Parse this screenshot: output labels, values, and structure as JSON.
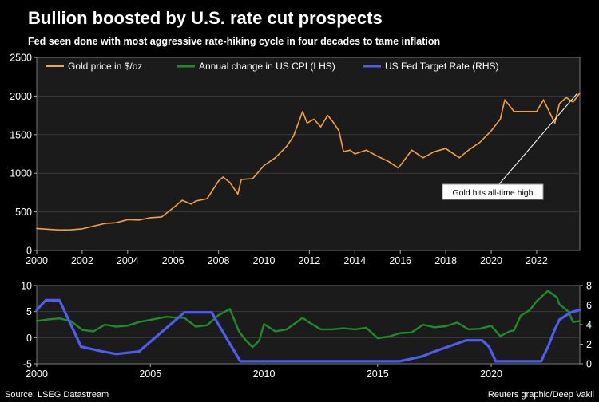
{
  "title": "Bullion boosted by U.S. rate cut prospects",
  "subtitle": "Fed seen done with most aggressive rate-hiking cycle in four decades to tame inflation",
  "source": "Source: LSEG Datastream",
  "credit": "Reuters graphic/Deep Vakil",
  "colors": {
    "background": "#000000",
    "plot_background": "#1b1b1b",
    "gold": "#f5a23c",
    "cpi": "#1e8c2a",
    "fed": "#4f5cf0",
    "text": "#ffffff",
    "grid": "#3a3a3a"
  },
  "chart_data": [
    {
      "type": "line",
      "name": "top",
      "legend": [
        "Gold price in $/oz",
        "Annual change in US CPI (LHS)",
        "US Fed Target Rate (RHS)"
      ],
      "xlim": [
        2000,
        2023.9
      ],
      "xticks": [
        "2000",
        "2002",
        "2004",
        "2006",
        "2008",
        "2010",
        "2012",
        "2014",
        "2016",
        "2018",
        "2020",
        "2022"
      ],
      "ylim": [
        0,
        2500
      ],
      "yticks": [
        "0",
        "500",
        "1000",
        "1500",
        "2000",
        "2500"
      ],
      "annotation": {
        "text": "Gold hits all-time high",
        "x": 2023.8,
        "y": 2040
      },
      "series": [
        {
          "name": "Gold price in $/oz",
          "x": [
            2000,
            2000.5,
            2001,
            2001.5,
            2002,
            2002.5,
            2003,
            2003.5,
            2004,
            2004.5,
            2005,
            2005.5,
            2006,
            2006.4,
            2006.8,
            2007,
            2007.5,
            2008,
            2008.2,
            2008.5,
            2008.85,
            2009,
            2009.5,
            2010,
            2010.5,
            2011,
            2011.3,
            2011.7,
            2011.9,
            2012.2,
            2012.5,
            2012.8,
            2013,
            2013.3,
            2013.5,
            2013.8,
            2014,
            2014.5,
            2015,
            2015.5,
            2015.9,
            2016,
            2016.5,
            2017,
            2017.5,
            2018,
            2018.6,
            2019,
            2019.5,
            2020,
            2020.4,
            2020.6,
            2021,
            2021.5,
            2022,
            2022.3,
            2022.8,
            2023,
            2023.3,
            2023.6,
            2023.9
          ],
          "values": [
            285,
            275,
            265,
            268,
            280,
            315,
            350,
            360,
            400,
            395,
            425,
            435,
            550,
            650,
            600,
            640,
            670,
            900,
            950,
            880,
            730,
            920,
            930,
            1100,
            1200,
            1350,
            1480,
            1800,
            1650,
            1700,
            1600,
            1750,
            1680,
            1550,
            1280,
            1300,
            1250,
            1300,
            1220,
            1150,
            1070,
            1100,
            1300,
            1200,
            1280,
            1320,
            1200,
            1300,
            1400,
            1550,
            1700,
            1950,
            1800,
            1800,
            1800,
            1950,
            1650,
            1900,
            1980,
            1920,
            2040
          ]
        }
      ]
    },
    {
      "type": "line",
      "name": "bottom",
      "xlim": [
        2000,
        2023.9
      ],
      "xticks": [
        "2000",
        "2005",
        "2010",
        "2015",
        "2020"
      ],
      "ylim_left": [
        -5,
        10
      ],
      "yticks_left": [
        "-5",
        "0",
        "5",
        "10"
      ],
      "ylim_right": [
        0,
        8
      ],
      "yticks_right": [
        "0",
        "2",
        "4",
        "6",
        "8"
      ],
      "series": [
        {
          "name": "Annual change in US CPI (LHS)",
          "axis": "left",
          "x": [
            2000,
            2000.5,
            2001,
            2001.5,
            2002,
            2002.5,
            2003,
            2003.5,
            2004,
            2004.5,
            2005,
            2005.7,
            2006,
            2006.5,
            2007,
            2007.5,
            2008,
            2008.5,
            2008.9,
            2009.2,
            2009.5,
            2009.8,
            2010,
            2010.5,
            2011,
            2011.7,
            2012,
            2012.5,
            2013,
            2013.5,
            2014,
            2014.5,
            2015,
            2015.5,
            2016,
            2016.5,
            2017,
            2017.5,
            2018,
            2018.5,
            2019,
            2019.5,
            2020,
            2020.4,
            2020.8,
            2021,
            2021.3,
            2021.7,
            2022,
            2022.5,
            2022.9,
            2023,
            2023.4,
            2023.6,
            2023.9
          ],
          "values": [
            3.2,
            3.5,
            3.7,
            3.2,
            1.5,
            1.2,
            2.5,
            2.1,
            2.3,
            3.0,
            3.4,
            4.0,
            3.9,
            3.8,
            2.1,
            2.4,
            4.3,
            5.5,
            1.2,
            -0.5,
            -1.8,
            -0.5,
            2.6,
            1.2,
            1.6,
            3.8,
            2.9,
            1.6,
            1.6,
            1.8,
            1.6,
            1.9,
            -0.1,
            0.2,
            0.9,
            1.0,
            2.5,
            2.0,
            2.2,
            2.9,
            1.6,
            1.7,
            2.3,
            0.3,
            1.2,
            1.4,
            4.2,
            5.3,
            7.0,
            9.0,
            7.7,
            6.4,
            5.0,
            3.0,
            3.2
          ]
        },
        {
          "name": "US Fed Target Rate (RHS)",
          "axis": "right",
          "x": [
            2000,
            2000.4,
            2001,
            2001.95,
            2002.9,
            2003.5,
            2004.5,
            2005,
            2006,
            2006.5,
            2007.7,
            2008,
            2008.96,
            2015.96,
            2016.96,
            2017.5,
            2018.9,
            2019.6,
            2019.9,
            2020.2,
            2022.2,
            2022.5,
            2022.8,
            2023,
            2023.5,
            2023.9
          ],
          "values": [
            5.5,
            6.5,
            6.5,
            1.75,
            1.25,
            1.0,
            1.25,
            2.25,
            4.25,
            5.25,
            5.25,
            4.0,
            0.25,
            0.25,
            0.75,
            1.25,
            2.4,
            2.4,
            1.75,
            0.25,
            0.25,
            1.75,
            3.5,
            4.5,
            5.25,
            5.5
          ]
        }
      ]
    }
  ]
}
